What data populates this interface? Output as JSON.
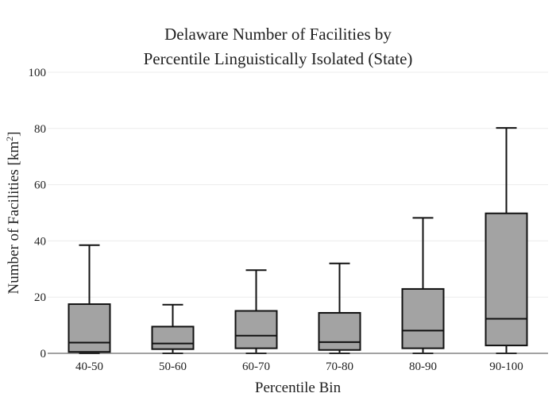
{
  "chart_data": {
    "type": "box",
    "title_line1": "Delaware Number of Facilities by",
    "title_line2": "Percentile Linguistically Isolated (State)",
    "xlabel": "Percentile Bin",
    "ylabel_main": "Number of Facilities",
    "ylabel_unit": "km",
    "ylabel_sup": "2",
    "ylim": [
      0,
      100
    ],
    "yticks": [
      0,
      20,
      40,
      60,
      80,
      100
    ],
    "grid": true,
    "categories": [
      "40-50",
      "50-60",
      "60-70",
      "70-80",
      "80-90",
      "90-100"
    ],
    "boxes": [
      {
        "min": 0,
        "q1": 0.5,
        "median": 3.8,
        "q3": 17.5,
        "max": 38.5
      },
      {
        "min": 0,
        "q1": 1.5,
        "median": 3.5,
        "q3": 9.5,
        "max": 17.3
      },
      {
        "min": 0,
        "q1": 1.8,
        "median": 6.3,
        "q3": 15.1,
        "max": 29.6
      },
      {
        "min": 0,
        "q1": 1.2,
        "median": 4.0,
        "q3": 14.4,
        "max": 32.0
      },
      {
        "min": 0,
        "q1": 1.8,
        "median": 8.1,
        "q3": 22.9,
        "max": 48.2
      },
      {
        "min": 0,
        "q1": 2.8,
        "median": 12.3,
        "q3": 49.8,
        "max": 80.2
      }
    ],
    "colors": {
      "box_fill": "#a3a3a3",
      "box_stroke": "#111111",
      "grid": "#ececec"
    }
  }
}
